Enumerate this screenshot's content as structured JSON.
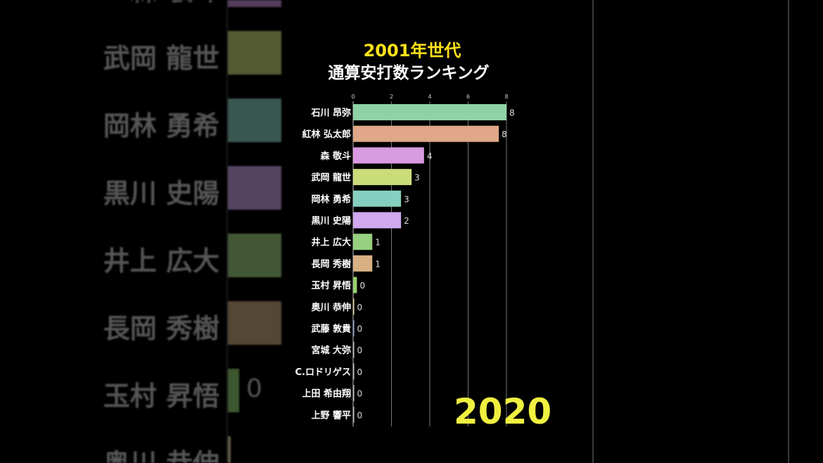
{
  "title": "2001年世代",
  "subtitle": "通算安打数ランキング",
  "year": "2020",
  "background_zoom": {
    "names": [
      "森 敬斗",
      "武岡 龍世",
      "岡林 勇希",
      "黒川 史陽",
      "井上 広大",
      "長岡 秀樹",
      "玉村 昇悟",
      "奥川 恭伸"
    ],
    "colors": [
      "#c98fd8",
      "#c8d87a",
      "#86cfc0",
      "#c8a3e8",
      "#9ccf82",
      "#c9aa7a",
      "#8fcf70",
      "#e8d8a0"
    ],
    "visible_value": "0"
  },
  "chart_data": {
    "type": "bar",
    "orientation": "horizontal",
    "title": "2001年世代",
    "subtitle": "通算安打数ランキング",
    "xlim": [
      0,
      8
    ],
    "xticks": [
      "0",
      "2",
      "4",
      "6",
      "8"
    ],
    "grid": true,
    "categories": [
      "石川 昂弥",
      "紅林 弘太郎",
      "森 敬斗",
      "武岡 龍世",
      "岡林 勇希",
      "黒川 史陽",
      "井上 広大",
      "長岡 秀樹",
      "玉村 昇悟",
      "奥川 恭伸",
      "武藤 敦貴",
      "宮城 大弥",
      "C.ロドリゲス",
      "上田 希由翔",
      "上野 響平"
    ],
    "values": [
      8.0,
      7.6,
      3.7,
      3.05,
      2.5,
      2.5,
      1.0,
      1.0,
      0.2,
      0.05,
      0.05,
      0.02,
      0.02,
      0.02,
      0.02
    ],
    "labels": [
      "8",
      "8",
      "4",
      "3",
      "3",
      "2",
      "1",
      "1",
      "0",
      "0",
      "0",
      "0",
      "0",
      "0",
      "0"
    ],
    "colors": [
      "#8fd3a5",
      "#e0a888",
      "#d89ae0",
      "#cadc7a",
      "#86cfc0",
      "#d2a8f0",
      "#96d080",
      "#d8b083",
      "#96d070",
      "#e8d8a0",
      "#90b0d0",
      "#c0c0c0",
      "#c0c0c0",
      "#c0c0c0",
      "#c0c0c0"
    ]
  }
}
